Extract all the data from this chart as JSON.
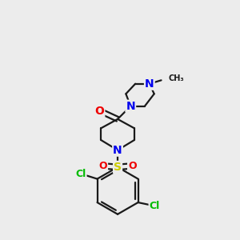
{
  "bg_color": "#ececec",
  "bond_color": "#1a1a1a",
  "bond_width": 1.6,
  "atom_colors": {
    "N": "#0000ee",
    "O": "#ee0000",
    "S": "#cccc00",
    "Cl": "#00bb00",
    "C": "#1a1a1a"
  },
  "font_size": 10,
  "figsize": [
    3.0,
    3.0
  ],
  "dpi": 100,
  "xlim": [
    0,
    10
  ],
  "ylim": [
    0,
    10
  ]
}
